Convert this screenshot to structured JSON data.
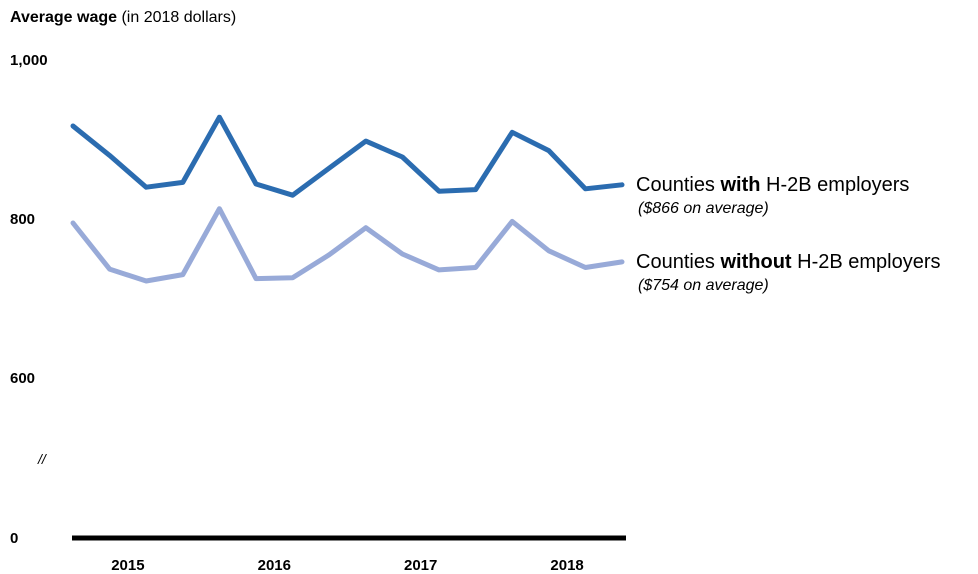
{
  "chart_data": {
    "type": "line",
    "title_bold": "Average wage",
    "title_rest": " (in 2018 dollars)",
    "y_ticks": [
      {
        "value": 1000,
        "label": "1,000"
      },
      {
        "value": 800,
        "label": "800"
      },
      {
        "value": 600,
        "label": "600"
      },
      {
        "value": 0,
        "label": "0"
      }
    ],
    "axis_break_symbol": "//",
    "x_tick_labels": [
      "2015",
      "2016",
      "2017",
      "2018"
    ],
    "x_tick_quarter_index": [
      1.5,
      5.5,
      9.5,
      13.5
    ],
    "x": [
      "2015 Q1",
      "2015 Q2",
      "2015 Q3",
      "2015 Q4",
      "2016 Q1",
      "2016 Q2",
      "2016 Q3",
      "2016 Q4",
      "2017 Q1",
      "2017 Q2",
      "2017 Q3",
      "2017 Q4",
      "2018 Q1",
      "2018 Q2",
      "2018 Q3",
      "2018 Q4"
    ],
    "series": [
      {
        "label_pre": "Counties ",
        "label_bold": "with",
        "label_post": " H-2B employers",
        "note": "($866 on average)",
        "color": "#2b6cb0",
        "values": [
          917,
          880,
          840,
          846,
          928,
          844,
          830,
          864,
          898,
          878,
          835,
          837,
          909,
          886,
          838,
          843
        ]
      },
      {
        "label_pre": "Counties ",
        "label_bold": "without",
        "label_post": " H-2B employers",
        "note": "($754 on average)",
        "color": "#98aad8",
        "values": [
          795,
          737,
          722,
          730,
          813,
          725,
          726,
          755,
          789,
          756,
          736,
          739,
          797,
          760,
          739,
          746
        ]
      }
    ]
  }
}
